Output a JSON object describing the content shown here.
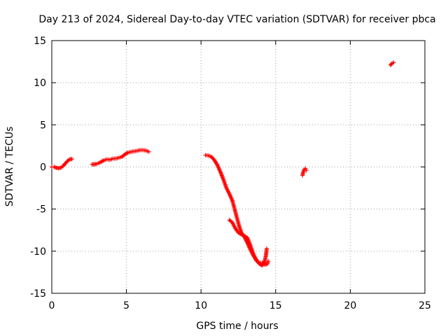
{
  "chart_data": {
    "type": "scatter",
    "title": "Day 213 of 2024, Sidereal Day-to-day VTEC variation (SDTVAR) for receiver pbca",
    "xlabel": "GPS time / hours",
    "ylabel": "SDTVAR / TECUs",
    "xlim": [
      0,
      25
    ],
    "ylim": [
      -15,
      15
    ],
    "xticks": [
      0,
      5,
      10,
      15,
      20,
      25
    ],
    "yticks": [
      -15,
      -10,
      -5,
      0,
      5,
      10,
      15
    ],
    "grid": true,
    "marker": "+",
    "series_color": "#ff0000",
    "series": [
      {
        "name": "segment-1",
        "points": [
          [
            0.0,
            0.0
          ],
          [
            0.15,
            0.0
          ],
          [
            0.3,
            -0.1
          ],
          [
            0.45,
            -0.15
          ],
          [
            0.6,
            -0.1
          ],
          [
            0.75,
            0.1
          ],
          [
            0.9,
            0.4
          ],
          [
            1.05,
            0.7
          ],
          [
            1.2,
            0.9
          ],
          [
            1.35,
            0.95
          ]
        ]
      },
      {
        "name": "segment-2",
        "points": [
          [
            2.7,
            0.3
          ],
          [
            3.0,
            0.35
          ],
          [
            3.2,
            0.5
          ],
          [
            3.5,
            0.8
          ],
          [
            3.7,
            0.9
          ],
          [
            3.9,
            0.85
          ],
          [
            4.1,
            1.0
          ],
          [
            4.3,
            1.0
          ],
          [
            4.5,
            1.1
          ],
          [
            4.7,
            1.2
          ],
          [
            4.9,
            1.5
          ],
          [
            5.1,
            1.7
          ],
          [
            5.3,
            1.8
          ],
          [
            5.5,
            1.85
          ],
          [
            5.7,
            1.9
          ],
          [
            5.9,
            2.0
          ],
          [
            6.1,
            2.0
          ],
          [
            6.3,
            1.95
          ],
          [
            6.5,
            1.8
          ]
        ]
      },
      {
        "name": "segment-3",
        "points": [
          [
            10.3,
            1.4
          ],
          [
            10.5,
            1.35
          ],
          [
            10.7,
            1.2
          ],
          [
            10.9,
            0.8
          ],
          [
            11.1,
            0.2
          ],
          [
            11.3,
            -0.6
          ],
          [
            11.5,
            -1.5
          ],
          [
            11.7,
            -2.5
          ],
          [
            11.9,
            -3.2
          ],
          [
            12.1,
            -4.0
          ],
          [
            12.25,
            -5.0
          ],
          [
            12.4,
            -6.0
          ],
          [
            12.55,
            -7.0
          ],
          [
            12.7,
            -7.8
          ],
          [
            12.9,
            -8.3
          ],
          [
            13.1,
            -9.0
          ],
          [
            13.3,
            -9.8
          ],
          [
            13.5,
            -10.5
          ],
          [
            13.7,
            -11.0
          ],
          [
            13.9,
            -11.5
          ],
          [
            14.1,
            -11.7
          ],
          [
            14.25,
            -11.3
          ],
          [
            14.35,
            -10.5
          ],
          [
            14.4,
            -9.7
          ]
        ]
      },
      {
        "name": "segment-4",
        "points": [
          [
            11.9,
            -6.3
          ],
          [
            12.1,
            -6.6
          ],
          [
            12.3,
            -7.3
          ],
          [
            12.5,
            -7.8
          ],
          [
            12.7,
            -8.0
          ],
          [
            12.9,
            -8.2
          ],
          [
            13.1,
            -8.4
          ],
          [
            13.3,
            -9.3
          ],
          [
            13.5,
            -10.3
          ],
          [
            13.7,
            -11.1
          ],
          [
            13.9,
            -11.4
          ],
          [
            14.1,
            -11.4
          ],
          [
            14.3,
            -11.6
          ],
          [
            14.45,
            -11.5
          ],
          [
            14.5,
            -11.2
          ]
        ]
      },
      {
        "name": "segment-5",
        "points": [
          [
            16.8,
            -1.0
          ],
          [
            16.85,
            -0.6
          ],
          [
            16.9,
            -0.3
          ],
          [
            17.0,
            -0.2
          ],
          [
            17.05,
            -0.4
          ]
        ]
      },
      {
        "name": "segment-6",
        "points": [
          [
            22.7,
            12.1
          ],
          [
            22.8,
            12.3
          ],
          [
            22.9,
            12.4
          ]
        ]
      }
    ]
  }
}
